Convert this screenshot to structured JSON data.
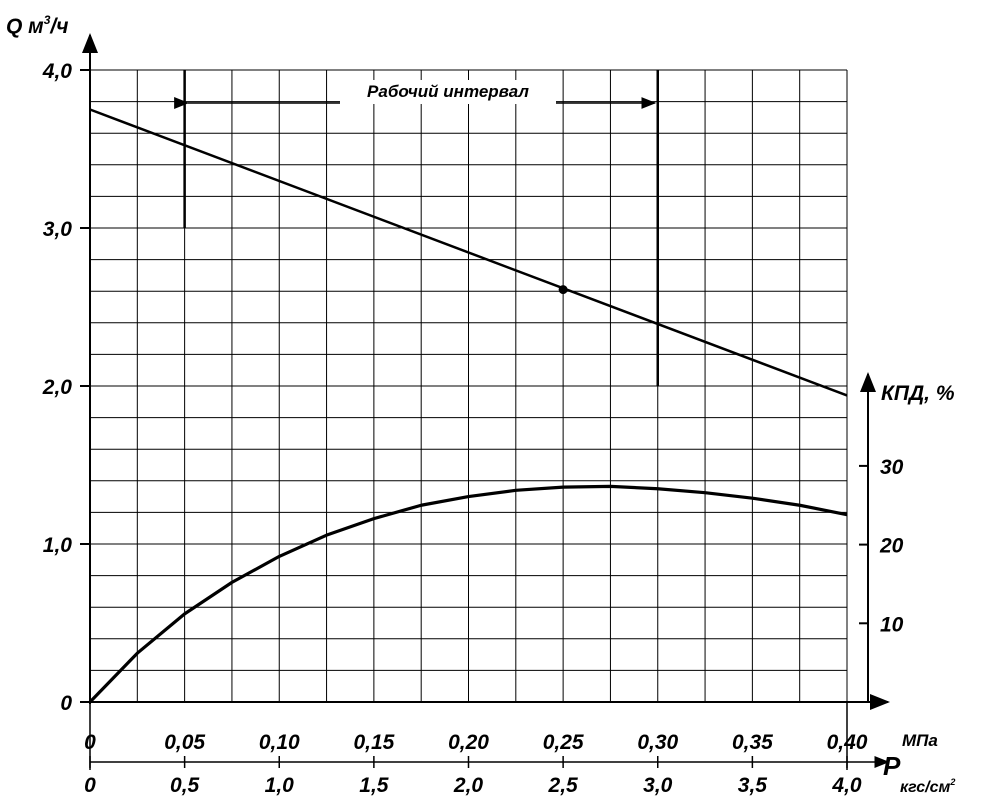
{
  "chart_data": {
    "type": "line",
    "y_label_main": "Q м",
    "y_label_sup": "3",
    "y_label_tail": "/ч",
    "y_ticks": [
      "0",
      "1,0",
      "2,0",
      "3,0",
      "4,0"
    ],
    "ylim": [
      0,
      4
    ],
    "y2_label": "КПД, %",
    "y2_ticks": [
      "10",
      "20",
      "30"
    ],
    "x_mpa_unit": "МПа",
    "x_mpa_ticks": [
      "0",
      "0,05",
      "0,10",
      "0,15",
      "0,20",
      "0,25",
      "0,30",
      "0,35",
      "0,40"
    ],
    "x_kgf_symbol": "P",
    "x_kgf_unit": "кгс/см",
    "x_kgf_unit_sup": "2",
    "x_kgf_ticks": [
      "0",
      "0,5",
      "1,0",
      "1,5",
      "2,0",
      "2,5",
      "3,0",
      "3,5",
      "4,0"
    ],
    "xlim": [
      0,
      4.0
    ],
    "annotation": "Рабочий интервал",
    "working_range": [
      0.5,
      3.0
    ],
    "rated_point": {
      "x": 2.5,
      "y": 2.61
    },
    "series": [
      {
        "axis": "Q",
        "x": [
          0,
          4.0
        ],
        "y": [
          3.75,
          1.94
        ]
      },
      {
        "axis": "КПД",
        "x": [
          0,
          0.25,
          0.5,
          0.75,
          1.0,
          1.25,
          1.5,
          1.75,
          2.0,
          2.25,
          2.5,
          2.75,
          3.0,
          3.25,
          3.5,
          3.75,
          4.0
        ],
        "y": [
          0,
          6.2,
          11.2,
          15.2,
          18.5,
          21.2,
          23.3,
          25.0,
          26.1,
          26.9,
          27.3,
          27.4,
          27.1,
          26.6,
          25.9,
          25.0,
          23.8
        ]
      }
    ],
    "grid": true
  }
}
